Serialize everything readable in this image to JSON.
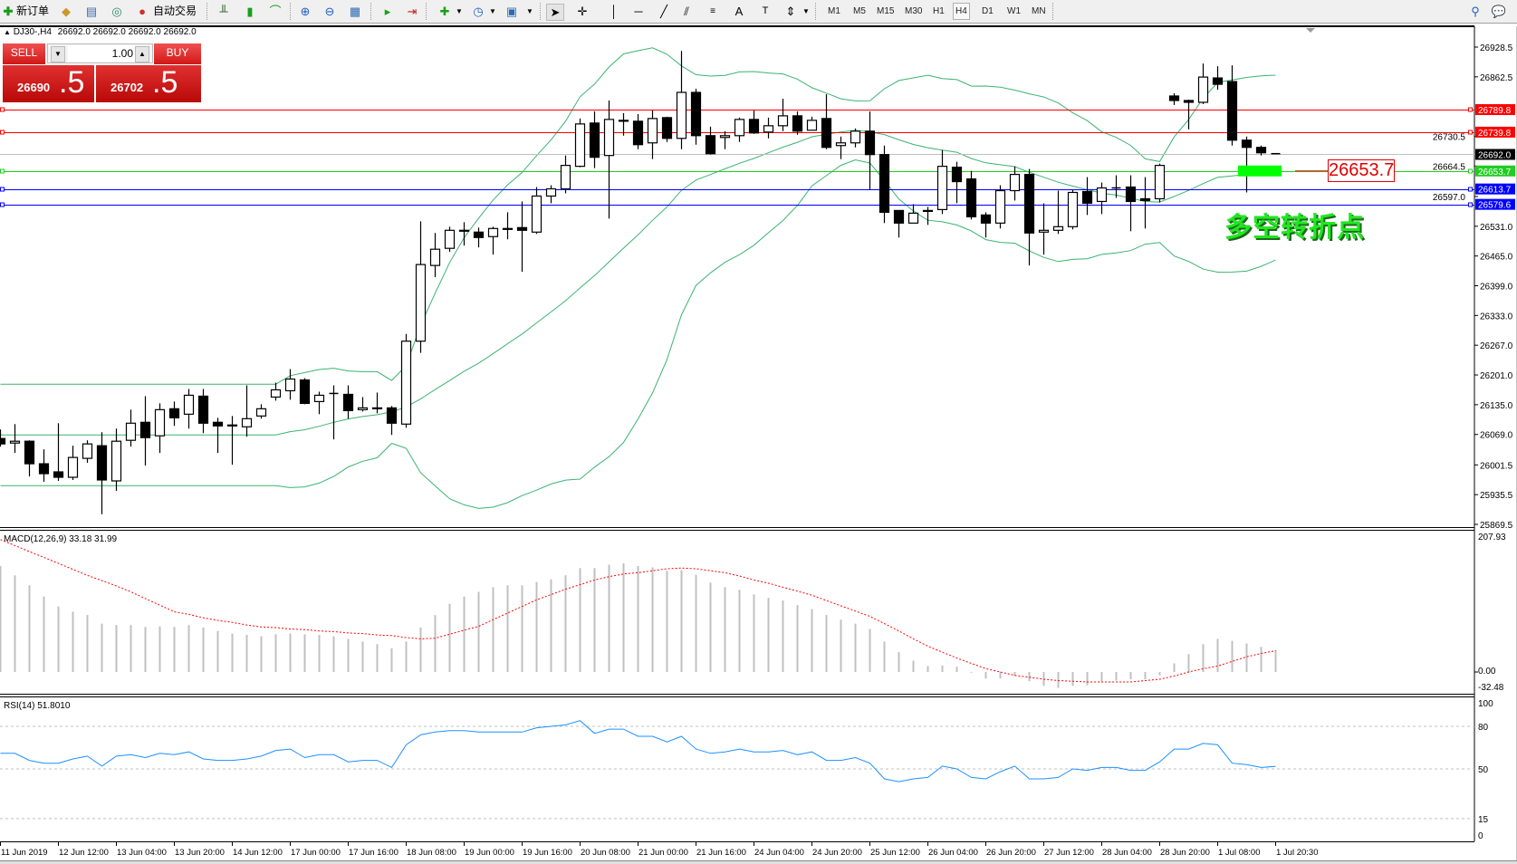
{
  "toolbar": {
    "new_order_label": "新订单",
    "auto_trading_label": "自动交易",
    "timeframes": [
      "M1",
      "M5",
      "M15",
      "M30",
      "H1",
      "H4",
      "D1",
      "W1",
      "MN"
    ],
    "active_timeframe": "H4",
    "icons": [
      "new-order-icon",
      "history-center-icon",
      "terminal-icon",
      "market-watch-icon",
      "auto-trading-icon",
      "bar-chart-icon",
      "candlestick-icon",
      "line-chart-icon",
      "zoom-in-icon",
      "zoom-out-icon",
      "tile-windows-icon",
      "chart-shift-icon",
      "auto-scroll-icon",
      "indicators-icon",
      "periods-icon",
      "templates-icon",
      "cursor-icon",
      "crosshair-icon",
      "vertical-line-icon",
      "horizontal-line-icon",
      "trendline-icon",
      "equidistant-channel-icon",
      "fibonacci-icon",
      "text-icon",
      "text-label-icon",
      "arrows-icon",
      "search-icon",
      "chat-icon"
    ]
  },
  "chart_header": {
    "symbol": "DJ30-,H4",
    "ohlc": "26692.0 26692.0 26692.0 26692.0"
  },
  "trade_panel": {
    "sell_label": "SELL",
    "buy_label": "BUY",
    "lot": "1.00",
    "sell_price_main": "26690",
    "sell_price_frac": ".5",
    "buy_price_main": "26702",
    "buy_price_frac": ".5"
  },
  "annotation": {
    "text": "多空转折点",
    "price_box": "26653.7",
    "marker_color": "#00ff00"
  },
  "chart_data": {
    "type": "candlestick",
    "symbol": "DJ30-",
    "timeframe": "H4",
    "ohlc_order": [
      "open",
      "high",
      "low",
      "close"
    ],
    "candles": [
      [
        26060,
        26080,
        26042,
        26048
      ],
      [
        26050,
        26092,
        26028,
        26054
      ],
      [
        26054,
        26056,
        25976,
        26004
      ],
      [
        26004,
        26036,
        25964,
        25982
      ],
      [
        25986,
        26094,
        25966,
        25974
      ],
      [
        25974,
        26044,
        25968,
        26018
      ],
      [
        26016,
        26056,
        26006,
        26048
      ],
      [
        26044,
        26074,
        25892,
        25968
      ],
      [
        25966,
        26082,
        25944,
        26054
      ],
      [
        26056,
        26124,
        26042,
        26094
      ],
      [
        26096,
        26154,
        26000,
        26062
      ],
      [
        26066,
        26138,
        26028,
        26124
      ],
      [
        26126,
        26142,
        26088,
        26106
      ],
      [
        26114,
        26170,
        26082,
        26156
      ],
      [
        26154,
        26170,
        26072,
        26094
      ],
      [
        26096,
        26106,
        26028,
        26088
      ],
      [
        26088,
        26110,
        26002,
        26090
      ],
      [
        26086,
        26178,
        26064,
        26104
      ],
      [
        26110,
        26136,
        26104,
        26126
      ],
      [
        26152,
        26184,
        26144,
        26168
      ],
      [
        26166,
        26214,
        26146,
        26192
      ],
      [
        26190,
        26194,
        26136,
        26138
      ],
      [
        26142,
        26164,
        26114,
        26156
      ],
      [
        26160,
        26178,
        26058,
        26160
      ],
      [
        26158,
        26178,
        26104,
        26122
      ],
      [
        26124,
        26152,
        26120,
        26128
      ],
      [
        26128,
        26162,
        26116,
        26126
      ],
      [
        26128,
        26132,
        26068,
        26094
      ],
      [
        26092,
        26292,
        26084,
        26276
      ],
      [
        26276,
        26542,
        26250,
        26446
      ],
      [
        26444,
        26516,
        26418,
        26480
      ],
      [
        26482,
        26530,
        26474,
        26522
      ],
      [
        26520,
        26540,
        26488,
        26522
      ],
      [
        26518,
        26528,
        26484,
        26506
      ],
      [
        26508,
        26530,
        26468,
        26526
      ],
      [
        26526,
        26562,
        26502,
        26524
      ],
      [
        26528,
        26586,
        26430,
        26522
      ],
      [
        26518,
        26618,
        26514,
        26598
      ],
      [
        26598,
        26622,
        26582,
        26614
      ],
      [
        26614,
        26688,
        26604,
        26666
      ],
      [
        26664,
        26770,
        26662,
        26758
      ],
      [
        26760,
        26786,
        26660,
        26684
      ],
      [
        26688,
        26810,
        26548,
        26768
      ],
      [
        26764,
        26782,
        26732,
        26766
      ],
      [
        26764,
        26780,
        26702,
        26712
      ],
      [
        26716,
        26788,
        26680,
        26770
      ],
      [
        26772,
        26774,
        26718,
        26726
      ],
      [
        26726,
        26920,
        26702,
        26828
      ],
      [
        26828,
        26836,
        26712,
        26732
      ],
      [
        26732,
        26752,
        26690,
        26692
      ],
      [
        26728,
        26742,
        26702,
        26732
      ],
      [
        26732,
        26772,
        26718,
        26768
      ],
      [
        26768,
        26788,
        26736,
        26738
      ],
      [
        26740,
        26772,
        26726,
        26754
      ],
      [
        26754,
        26814,
        26742,
        26776
      ],
      [
        26776,
        26786,
        26734,
        26742
      ],
      [
        26744,
        26774,
        26744,
        26766
      ],
      [
        26770,
        26824,
        26702,
        26706
      ],
      [
        26710,
        26730,
        26680,
        26716
      ],
      [
        26716,
        26748,
        26706,
        26742
      ],
      [
        26742,
        26786,
        26612,
        26690
      ],
      [
        26690,
        26710,
        26538,
        26562
      ],
      [
        26566,
        26566,
        26506,
        26538
      ],
      [
        26538,
        26580,
        26538,
        26560
      ],
      [
        26564,
        26574,
        26534,
        26566
      ],
      [
        26568,
        26700,
        26558,
        26664
      ],
      [
        26662,
        26674,
        26582,
        26630
      ],
      [
        26636,
        26654,
        26546,
        26552
      ],
      [
        26556,
        26562,
        26506,
        26538
      ],
      [
        26538,
        26622,
        26526,
        26610
      ],
      [
        26610,
        26664,
        26588,
        26646
      ],
      [
        26646,
        26658,
        26444,
        26516
      ],
      [
        26518,
        26582,
        26468,
        26522
      ],
      [
        26522,
        26610,
        26514,
        26530
      ],
      [
        26530,
        26612,
        26524,
        26606
      ],
      [
        26608,
        26640,
        26556,
        26582
      ],
      [
        26586,
        26628,
        26558,
        26616
      ],
      [
        26616,
        26644,
        26594,
        26616
      ],
      [
        26618,
        26644,
        26520,
        26586
      ],
      [
        26592,
        26640,
        26526,
        26588
      ],
      [
        26592,
        26670,
        26584,
        26666
      ],
      [
        26820,
        26826,
        26800,
        26810
      ],
      [
        26810,
        26812,
        26746,
        26806
      ],
      [
        26806,
        26892,
        26802,
        26862
      ],
      [
        26860,
        26886,
        26834,
        26846
      ],
      [
        26852,
        26888,
        26710,
        26722
      ],
      [
        26722,
        26730,
        26606,
        26706
      ],
      [
        26706,
        26710,
        26688,
        26694
      ],
      [
        26692,
        26692,
        26692,
        26692
      ]
    ],
    "bollinger_color": "#3cb371",
    "current_price": 26692.0,
    "current_price_label": "26692.0",
    "price_axis": {
      "ticks": [
        "26928.5",
        "26862.5",
        "26730.5",
        "26664.5",
        "26597.0",
        "26531.0",
        "26465.0",
        "26399.0",
        "26333.0",
        "26267.0",
        "26201.0",
        "26135.0",
        "26069.0",
        "26001.5",
        "25935.5",
        "25869.5"
      ]
    },
    "horizontal_lines": [
      {
        "price": 26789.8,
        "label": "26789.8",
        "color": "#ff0000"
      },
      {
        "price": 26739.8,
        "label": "26739.8",
        "color": "#ff0000"
      },
      {
        "price": 26653.7,
        "label": "26653.7",
        "color": "#22cc22"
      },
      {
        "price": 26613.7,
        "label": "26613.7",
        "color": "#0000ff"
      },
      {
        "price": 26579.6,
        "label": "26579.6",
        "color": "#0000ff"
      }
    ],
    "time_axis": {
      "labels": [
        "11 Jun 2019",
        "12 Jun 12:00",
        "13 Jun 04:00",
        "13 Jun 20:00",
        "14 Jun 12:00",
        "17 Jun 00:00",
        "17 Jun 16:00",
        "18 Jun 08:00",
        "19 Jun 00:00",
        "19 Jun 16:00",
        "20 Jun 08:00",
        "21 Jun 00:00",
        "21 Jun 16:00",
        "24 Jun 04:00",
        "24 Jun 20:00",
        "25 Jun 12:00",
        "26 Jun 04:00",
        "26 Jun 20:00",
        "27 Jun 12:00",
        "28 Jun 04:00",
        "28 Jun 20:00",
        "1 Jul 08:00",
        "1 Jul 20:30"
      ]
    },
    "macd": {
      "title": "MACD(12,26,9) 33.18 31.99",
      "axis_labels": [
        "207.93",
        "0.00",
        "-32.48"
      ],
      "ylim": [
        -32.48,
        207.93
      ],
      "histogram_color": "#c0c0c0",
      "signal_color": "#ff0000",
      "histogram": [
        160,
        146,
        131,
        114,
        99,
        91,
        86,
        73,
        71,
        71,
        68,
        69,
        68,
        71,
        67,
        62,
        58,
        56,
        54,
        57,
        58,
        57,
        56,
        54,
        50,
        46,
        42,
        36,
        46,
        67,
        86,
        103,
        114,
        121,
        128,
        131,
        131,
        136,
        140,
        146,
        157,
        157,
        162,
        164,
        160,
        158,
        153,
        154,
        147,
        135,
        128,
        124,
        117,
        112,
        108,
        101,
        95,
        86,
        79,
        73,
        65,
        46,
        30,
        17,
        9,
        10,
        8,
        -1,
        -10,
        -10,
        -6,
        -14,
        -21,
        -24,
        -21,
        -20,
        -14,
        -13,
        -11,
        -11,
        -5,
        13,
        27,
        42,
        50,
        47,
        43,
        38,
        33.18
      ],
      "signal": [
        200,
        191,
        182,
        173,
        164,
        155,
        146,
        138,
        130,
        121,
        111,
        101,
        91,
        87,
        82,
        78,
        75,
        71,
        68,
        67,
        65,
        64,
        62,
        61,
        59,
        58,
        56,
        55,
        52,
        50,
        51,
        57,
        63,
        69,
        79,
        89,
        99,
        109,
        117,
        125,
        132,
        139,
        144,
        148,
        150,
        153,
        156,
        157,
        156,
        153,
        150,
        145,
        139,
        134,
        128,
        122,
        116,
        108,
        100,
        92,
        84,
        73,
        62,
        50,
        39,
        30,
        21,
        13,
        5,
        0,
        -5,
        -8,
        -11,
        -13,
        -14,
        -15,
        -15,
        -15,
        -15,
        -13,
        -11,
        -6,
        0,
        5,
        9,
        16,
        23,
        28,
        31.99
      ]
    },
    "rsi": {
      "title": "RSI(14) 51.8010",
      "axis_labels": [
        "100",
        "80",
        "50",
        "15",
        "0"
      ],
      "levels": [
        80,
        50,
        15
      ],
      "color": "#1e90ff",
      "values": [
        61,
        61,
        56,
        54,
        54,
        57,
        59,
        52,
        59,
        60,
        58,
        61,
        60,
        62,
        57,
        56,
        56,
        57,
        59,
        63,
        64,
        58,
        60,
        60,
        55,
        56,
        56,
        51,
        67,
        74,
        76,
        77,
        77,
        76,
        76,
        76,
        76,
        79,
        80,
        81,
        84,
        75,
        78,
        78,
        73,
        73,
        69,
        73,
        64,
        61,
        62,
        64,
        62,
        62,
        63,
        60,
        62,
        56,
        56,
        58,
        54,
        43,
        41,
        43,
        44,
        52,
        50,
        44,
        43,
        48,
        52,
        43,
        43,
        44,
        50,
        49,
        51,
        51,
        49,
        49,
        55,
        64,
        64,
        68,
        67,
        54,
        53,
        51,
        51.801
      ]
    }
  }
}
